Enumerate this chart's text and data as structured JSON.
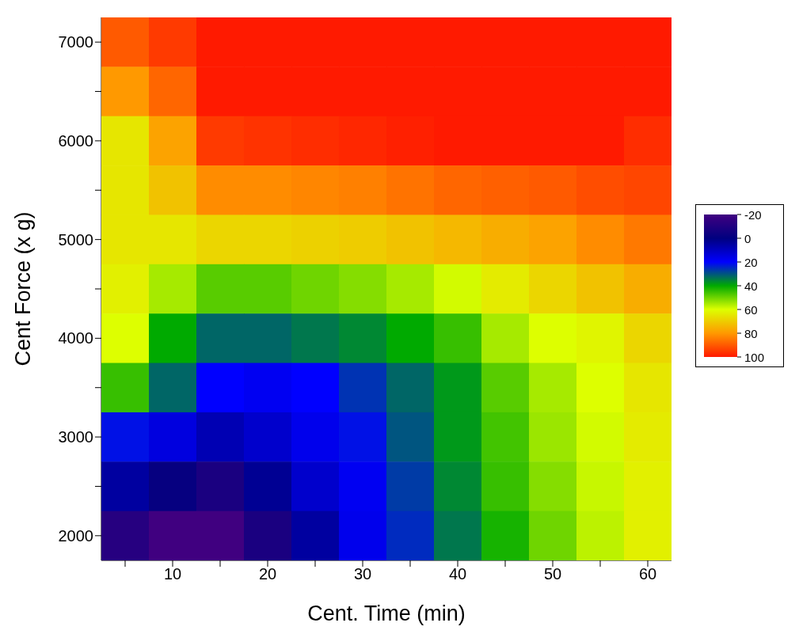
{
  "chart_data": {
    "type": "heatmap",
    "xlabel": "Cent. Time (min)",
    "ylabel": "Cent Force (x g)",
    "categories": [
      null,
      "10",
      null,
      "20",
      null,
      "30",
      null,
      "40",
      null,
      "50",
      null,
      "60"
    ],
    "y_categories": [
      "7000",
      null,
      "6000",
      null,
      "5000",
      null,
      "4000",
      null,
      "3000",
      null,
      "2000"
    ],
    "clim": [
      -20,
      100
    ],
    "cticks": [
      -20,
      0,
      20,
      40,
      60,
      80,
      100
    ],
    "colors": [
      "#400080",
      "#000080",
      "#0000ff",
      "#00aa00",
      "#ddff00",
      "#ff9900",
      "#ff1a00"
    ],
    "cells": [
      [
        90,
        95,
        100,
        100,
        100,
        100,
        100,
        100,
        100,
        100,
        100,
        100
      ],
      [
        80,
        88,
        100,
        100,
        100,
        100,
        100,
        100,
        100,
        100,
        100,
        100
      ],
      [
        65,
        78,
        95,
        96,
        97,
        98,
        99,
        100,
        100,
        100,
        100,
        97
      ],
      [
        65,
        72,
        82,
        82,
        83,
        84,
        86,
        88,
        89,
        90,
        92,
        93
      ],
      [
        65,
        65,
        68,
        68,
        69,
        70,
        72,
        74,
        76,
        78,
        82,
        85
      ],
      [
        63,
        55,
        48,
        48,
        50,
        52,
        55,
        59,
        64,
        68,
        72,
        76
      ],
      [
        60,
        40,
        32,
        32,
        34,
        36,
        40,
        45,
        55,
        60,
        62,
        68
      ],
      [
        45,
        32,
        20,
        18,
        20,
        26,
        32,
        38,
        48,
        55,
        60,
        65
      ],
      [
        22,
        15,
        8,
        12,
        17,
        22,
        30,
        38,
        46,
        54,
        59,
        64
      ],
      [
        5,
        -2,
        -8,
        3,
        12,
        18,
        27,
        36,
        45,
        52,
        58,
        63
      ],
      [
        -12,
        -20,
        -20,
        -8,
        5,
        17,
        25,
        34,
        42,
        50,
        57,
        63
      ]
    ]
  }
}
